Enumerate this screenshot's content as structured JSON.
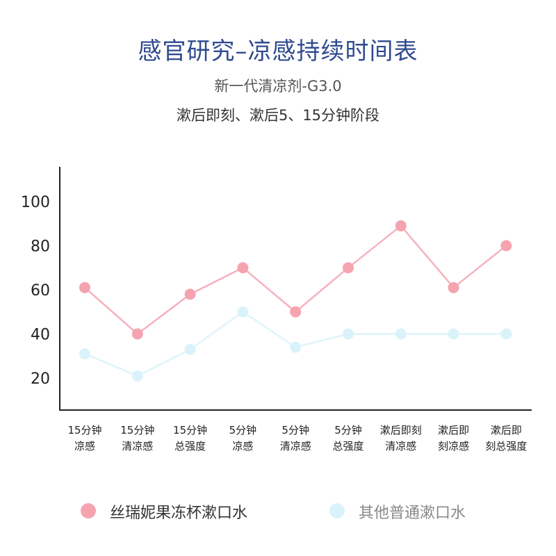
{
  "header": {
    "title": "感官研究–凉感持续时间表",
    "subtitle": "新一代清凉剂-G3.0",
    "subtitle2": "漱后即刻、漱后5、15分钟阶段"
  },
  "chart_data": {
    "type": "line",
    "categories": [
      [
        "15分钟",
        "凉感"
      ],
      [
        "15分钟",
        "清凉感"
      ],
      [
        "15分钟",
        "总强度"
      ],
      [
        "5分钟",
        "凉感"
      ],
      [
        "5分钟",
        "清凉感"
      ],
      [
        "5分钟",
        "总强度"
      ],
      [
        "漱后即刻",
        "清凉感"
      ],
      [
        "漱后即",
        "刻凉感"
      ],
      [
        "漱后即",
        "刻总强度"
      ]
    ],
    "series": [
      {
        "name": "丝瑞妮果冻杯漱口水",
        "values": [
          61,
          40,
          58,
          70,
          50,
          70,
          89,
          61,
          80
        ],
        "color": "#f6a3b0",
        "line_color": "#f6b2bc"
      },
      {
        "name": "其他普通漱口水",
        "values": [
          31,
          21,
          33,
          50,
          34,
          40,
          40,
          40,
          40
        ],
        "color": "#daf3fb",
        "line_color": "#dff4fb"
      }
    ],
    "ylim": [
      0,
      110
    ],
    "yticks": [
      20,
      40,
      60,
      80,
      100
    ],
    "grid": false,
    "legend_position": "bottom"
  }
}
